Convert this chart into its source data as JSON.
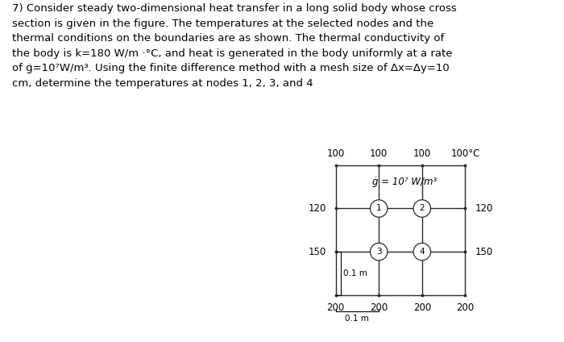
{
  "title_text": "7) Consider steady two-dimensional heat transfer in a long solid body whose cross\nsection is given in the figure. The temperatures at the selected nodes and the\nthermal conditions on the boundaries are as shown. The thermal conductivity of\nthe body is k=180 W/m ·°C, and heat is generated in the body uniformly at a rate\nof ġ=10⁷W/m³. Using the finite difference method with a mesh size of Δx=Δy=10\ncm, determine the temperatures at nodes 1, 2, 3, and 4",
  "background_color": "#ffffff",
  "grid_color": "#2a2a2a",
  "node_circle_color": "#ffffff",
  "node_circle_edge": "#2a2a2a",
  "top_labels": [
    "100",
    "100",
    "100",
    "100°C"
  ],
  "left_labels": [
    "120",
    "150"
  ],
  "right_labels": [
    "120",
    "150"
  ],
  "bottom_labels": [
    "200",
    "200",
    "200",
    "200"
  ],
  "node_labels": [
    "1",
    "2",
    "3",
    "4"
  ],
  "heat_gen_label": "ġ = 10⁷ W/m³",
  "dim_label_v": "0.1 m",
  "dim_label_h": "0.1 m",
  "font_size_labels": 8.5,
  "font_size_nodes": 7.5,
  "font_size_text": 9.5,
  "font_size_dim": 7.5
}
